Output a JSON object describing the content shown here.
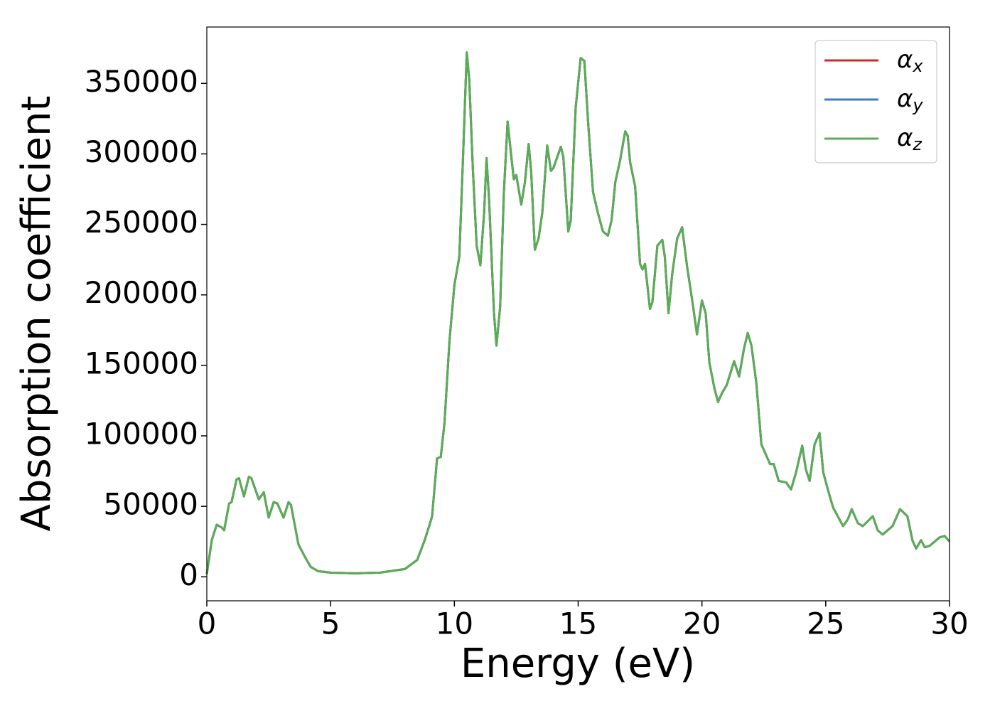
{
  "chart_data": {
    "type": "line",
    "xlabel": "Energy (eV)",
    "ylabel": "Absorption coefficient",
    "x": [
      0,
      0.2,
      0.4,
      0.6,
      0.7,
      0.9,
      1.0,
      1.2,
      1.3,
      1.5,
      1.7,
      1.8,
      2.1,
      2.3,
      2.5,
      2.7,
      2.85,
      3.1,
      3.3,
      3.4,
      3.7,
      4.0,
      4.2,
      4.5,
      5,
      6,
      7,
      8,
      8.5,
      8.8,
      9.0,
      9.1,
      9.3,
      9.45,
      9.6,
      9.8,
      10.0,
      10.2,
      10.35,
      10.5,
      10.6,
      10.75,
      10.9,
      11.05,
      11.2,
      11.3,
      11.4,
      11.6,
      11.7,
      11.85,
      12.0,
      12.15,
      12.3,
      12.4,
      12.5,
      12.7,
      12.85,
      13.0,
      13.1,
      13.25,
      13.4,
      13.55,
      13.75,
      13.9,
      14.0,
      14.3,
      14.4,
      14.6,
      14.7,
      14.9,
      15.1,
      15.25,
      15.4,
      15.6,
      15.8,
      16.0,
      16.2,
      16.35,
      16.5,
      16.7,
      16.9,
      17.0,
      17.1,
      17.3,
      17.5,
      17.6,
      17.7,
      17.9,
      18.0,
      18.2,
      18.4,
      18.5,
      18.65,
      18.8,
      19.0,
      19.2,
      19.4,
      19.6,
      19.8,
      20.0,
      20.15,
      20.3,
      20.5,
      20.65,
      20.8,
      21.0,
      21.3,
      21.5,
      21.7,
      21.85,
      22.0,
      22.2,
      22.4,
      22.6,
      22.75,
      22.9,
      23.1,
      23.4,
      23.6,
      23.8,
      24.05,
      24.2,
      24.35,
      24.55,
      24.75,
      24.9,
      25.1,
      25.3,
      25.7,
      25.9,
      26.05,
      26.3,
      26.5,
      26.9,
      27.1,
      27.3,
      27.7,
      28.0,
      28.3,
      28.5,
      28.65,
      28.85,
      29.0,
      29.2,
      29.6,
      29.8,
      30.0
    ],
    "series": [
      {
        "name": "αx",
        "color": "#d62728",
        "values": [
          2000,
          26000,
          37000,
          35000,
          33000,
          52000,
          53000,
          69000,
          70000,
          57000,
          71000,
          70000,
          55000,
          60000,
          42000,
          53000,
          52000,
          42000,
          53000,
          51000,
          23000,
          13000,
          7000,
          4000,
          3000,
          2500,
          3000,
          5500,
          12000,
          26000,
          37000,
          43000,
          84000,
          85000,
          109000,
          167000,
          207000,
          227000,
          298000,
          372000,
          353000,
          288000,
          235000,
          221000,
          258000,
          297000,
          268000,
          187000,
          164000,
          192000,
          273000,
          323000,
          298000,
          282000,
          285000,
          264000,
          280000,
          307000,
          288000,
          232000,
          240000,
          258000,
          306000,
          288000,
          290000,
          305000,
          298000,
          245000,
          253000,
          333000,
          368000,
          366000,
          323000,
          273000,
          258000,
          245000,
          242000,
          253000,
          280000,
          296000,
          316000,
          313000,
          294000,
          277000,
          222000,
          218000,
          222000,
          190000,
          195000,
          235000,
          239000,
          227000,
          187000,
          215000,
          240000,
          248000,
          220000,
          197000,
          172000,
          196000,
          187000,
          152000,
          134000,
          124000,
          130000,
          136000,
          153000,
          142000,
          162000,
          173000,
          164000,
          137000,
          94000,
          86000,
          80000,
          80000,
          68000,
          67000,
          62000,
          74000,
          93000,
          76000,
          68000,
          94000,
          102000,
          74000,
          61000,
          49000,
          36000,
          41000,
          48000,
          38000,
          36000,
          43000,
          33000,
          30000,
          36000,
          48000,
          43000,
          26000,
          20000,
          26000,
          21000,
          22000,
          28000,
          29000,
          25000
        ]
      },
      {
        "name": "αy",
        "color": "#3a7fbf",
        "values": [
          2000,
          26000,
          37000,
          35000,
          33000,
          52000,
          53000,
          69000,
          70000,
          57000,
          71000,
          70000,
          55000,
          60000,
          42000,
          53000,
          52000,
          42000,
          53000,
          51000,
          23000,
          13000,
          7000,
          4000,
          3000,
          2500,
          3000,
          5500,
          12000,
          26000,
          37000,
          43000,
          84000,
          85000,
          109000,
          167000,
          207000,
          227000,
          298000,
          372000,
          353000,
          288000,
          235000,
          221000,
          258000,
          297000,
          268000,
          187000,
          164000,
          192000,
          273000,
          323000,
          298000,
          282000,
          285000,
          264000,
          280000,
          307000,
          288000,
          232000,
          240000,
          258000,
          306000,
          288000,
          290000,
          305000,
          298000,
          245000,
          253000,
          333000,
          368000,
          366000,
          323000,
          273000,
          258000,
          245000,
          242000,
          253000,
          280000,
          296000,
          316000,
          313000,
          294000,
          277000,
          222000,
          218000,
          222000,
          190000,
          195000,
          235000,
          239000,
          227000,
          187000,
          215000,
          240000,
          248000,
          220000,
          197000,
          172000,
          196000,
          187000,
          152000,
          134000,
          124000,
          130000,
          136000,
          153000,
          142000,
          162000,
          173000,
          164000,
          137000,
          94000,
          86000,
          80000,
          80000,
          68000,
          67000,
          62000,
          74000,
          93000,
          76000,
          68000,
          94000,
          102000,
          74000,
          61000,
          49000,
          36000,
          41000,
          48000,
          38000,
          36000,
          43000,
          33000,
          30000,
          36000,
          48000,
          43000,
          26000,
          20000,
          26000,
          21000,
          22000,
          28000,
          29000,
          25000
        ]
      },
      {
        "name": "αz",
        "color": "#5aac55",
        "values": [
          2000,
          26000,
          37000,
          35000,
          33000,
          52000,
          53000,
          69000,
          70000,
          57000,
          71000,
          70000,
          55000,
          60000,
          42000,
          53000,
          52000,
          42000,
          53000,
          51000,
          23000,
          13000,
          7000,
          4000,
          3000,
          2500,
          3000,
          5500,
          12000,
          26000,
          37000,
          43000,
          84000,
          85000,
          109000,
          167000,
          207000,
          227000,
          298000,
          372000,
          353000,
          288000,
          235000,
          221000,
          258000,
          297000,
          268000,
          187000,
          164000,
          192000,
          273000,
          323000,
          298000,
          282000,
          285000,
          264000,
          280000,
          307000,
          288000,
          232000,
          240000,
          258000,
          306000,
          288000,
          290000,
          305000,
          298000,
          245000,
          253000,
          333000,
          368000,
          366000,
          323000,
          273000,
          258000,
          245000,
          242000,
          253000,
          280000,
          296000,
          316000,
          313000,
          294000,
          277000,
          222000,
          218000,
          222000,
          190000,
          195000,
          235000,
          239000,
          227000,
          187000,
          215000,
          240000,
          248000,
          220000,
          197000,
          172000,
          196000,
          187000,
          152000,
          134000,
          124000,
          130000,
          136000,
          153000,
          142000,
          162000,
          173000,
          164000,
          137000,
          94000,
          86000,
          80000,
          80000,
          68000,
          67000,
          62000,
          74000,
          93000,
          76000,
          68000,
          94000,
          102000,
          74000,
          61000,
          49000,
          36000,
          41000,
          48000,
          38000,
          36000,
          43000,
          33000,
          30000,
          36000,
          48000,
          43000,
          26000,
          20000,
          26000,
          21000,
          22000,
          28000,
          29000,
          25000
        ]
      }
    ],
    "xlim": [
      0,
      30
    ],
    "xticks": [
      0,
      5,
      10,
      15,
      20,
      25,
      30
    ],
    "ylim": [
      -17000,
      390000
    ],
    "yticks": [
      0,
      50000,
      100000,
      150000,
      200000,
      250000,
      300000,
      350000
    ],
    "legend": "upper right"
  }
}
